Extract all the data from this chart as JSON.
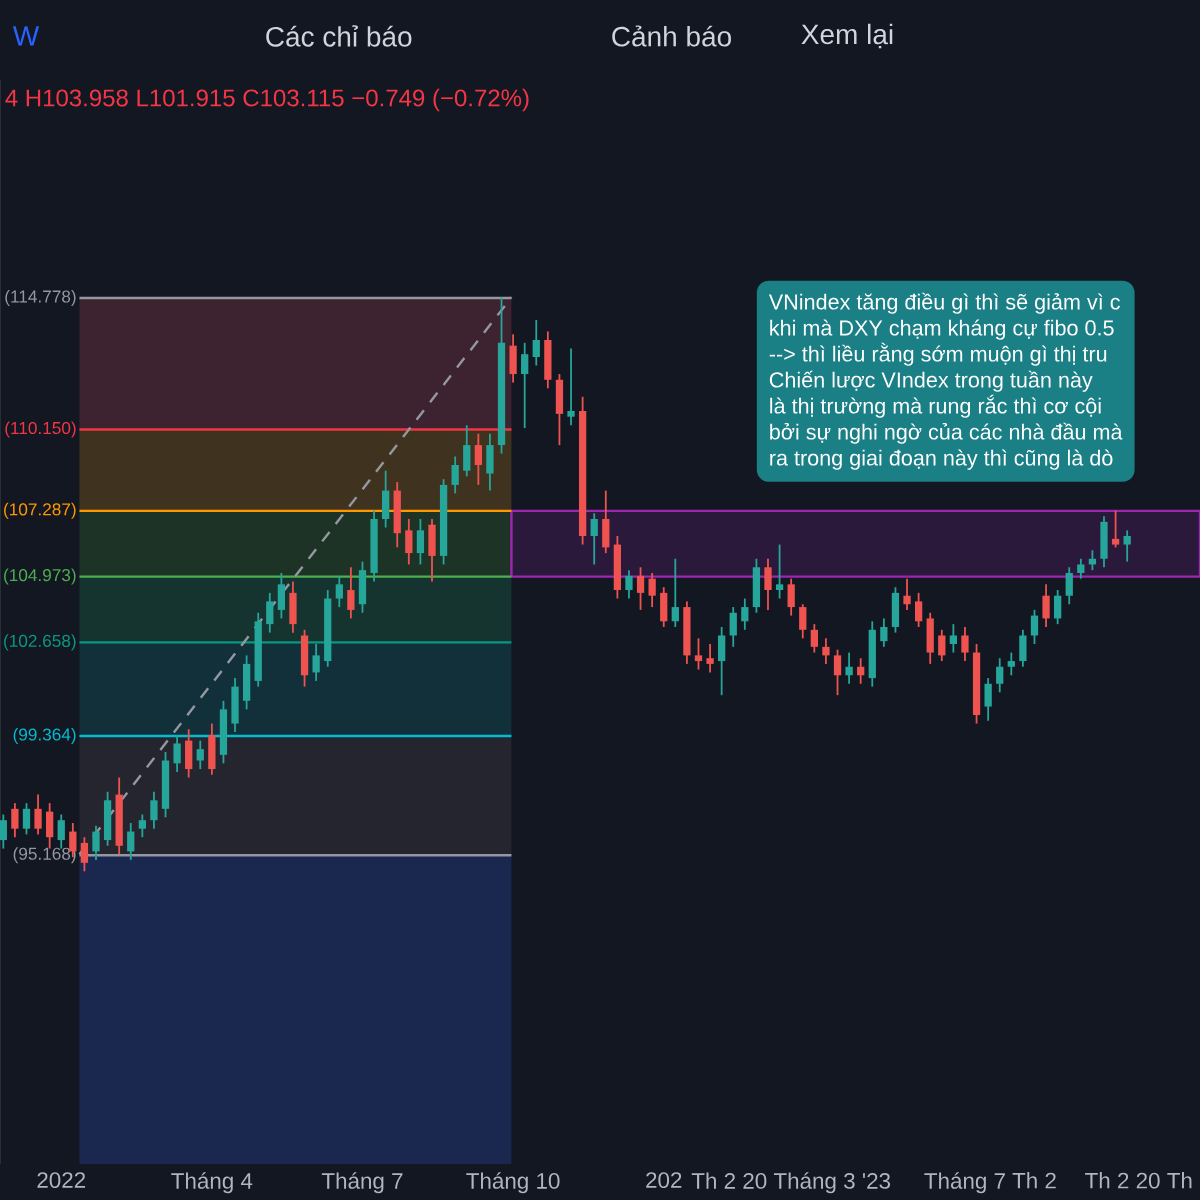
{
  "chart_data": {
    "type": "candlestick",
    "subtitle": "4 H103.958 L101.915 C103.115 −0.749 (−0.72%)",
    "annotations": [
      "W",
      "Các chỉ báo",
      "Cảnh báo",
      "Xem lại",
      "VNindex tăng điều gì thì sẽ giảm vì c",
      "khi mà DXY chạm kháng cự fibo 0.5",
      "--> thì liều rằng sớm muộn gì thị tru",
      "Chiến lược VIndex trong tuần này",
      "là thị trường mà rung rắc thì cơ cội",
      "bởi sự nghi ngờ của các nhà đầu mà",
      "ra trong giai đoạn này thì cũng là dò"
    ],
    "xlim": [
      "2021-11-27",
      "2023-11-22"
    ],
    "ylim": [
      84.3,
      122.45
    ],
    "tick_labels": "x",
    "xticks": [
      {
        "value": "2022-01-03",
        "label": "2022"
      },
      {
        "value": "2022-04-04",
        "label": "Tháng 4"
      },
      {
        "value": "2022-07-04",
        "label": "Tháng 7"
      },
      {
        "value": "2022-10-03",
        "label": "Tháng 10"
      },
      {
        "value": "2023-01-02",
        "label": "202"
      },
      {
        "value": "2023-03-20",
        "label": "Th 2 20 Tháng 3 '23"
      },
      {
        "value": "2023-07-03",
        "label": "Tháng 7"
      },
      {
        "value": "2023-08-14",
        "label": "Th 2"
      },
      {
        "value": "2023-10-16",
        "label": "Th 2 20 Th"
      }
    ],
    "ref_lines": [
      {
        "axis": "y",
        "value": 114.778,
        "label": "(114.778)",
        "color": "#9598a1"
      },
      {
        "axis": "y",
        "value": 110.15,
        "label": "(110.150)",
        "color": "#f23645"
      },
      {
        "axis": "y",
        "value": 107.287,
        "label": "(107.287)",
        "color": "#ff9800"
      },
      {
        "axis": "y",
        "value": 104.973,
        "label": "(104.973)",
        "color": "#4caf50"
      },
      {
        "axis": "y",
        "value": 102.658,
        "label": "(102.658)",
        "color": "#089981"
      },
      {
        "axis": "y",
        "value": 99.364,
        "label": "(99.364)",
        "color": "#00bcd4"
      },
      {
        "axis": "y",
        "value": 95.168,
        "label": "(95.168)",
        "color": "#9598a1"
      }
    ],
    "bands": [
      {
        "axis": "y",
        "from": 110.15,
        "to": 114.778,
        "color": "#3d2230"
      },
      {
        "axis": "y",
        "from": 107.287,
        "to": 110.15,
        "color": "#3f3320"
      },
      {
        "axis": "y",
        "from": 104.973,
        "to": 107.287,
        "color": "#1d3326"
      },
      {
        "axis": "y",
        "from": 102.658,
        "to": 104.973,
        "color": "#15332f"
      },
      {
        "axis": "y",
        "from": 99.364,
        "to": 102.658,
        "color": "#123039"
      },
      {
        "axis": "y",
        "from": 95.168,
        "to": 99.364,
        "color": "#25252f"
      },
      {
        "axis": "y",
        "from": 84.3,
        "to": 95.168,
        "color": "#1a2850"
      },
      {
        "axis": "y",
        "from": 104.973,
        "to": 107.287,
        "color": "#9c27b0"
      }
    ],
    "series": [
      {
        "type": "line",
        "x": [
          "2022-01-14",
          "2022-10-02"
        ],
        "values": [
          95.2,
          114.8
        ],
        "color": "#9598a1",
        "line_style": "dashed"
      },
      {
        "type": "candlestick",
        "x": [
          "2021-11-29",
          "2021-12-06",
          "2021-12-13",
          "2021-12-20",
          "2021-12-27",
          "2022-01-03",
          "2022-01-10",
          "2022-01-17",
          "2022-01-24",
          "2022-01-31",
          "2022-02-07",
          "2022-02-14",
          "2022-02-21",
          "2022-02-28",
          "2022-03-07",
          "2022-03-14",
          "2022-03-21",
          "2022-03-28",
          "2022-04-04",
          "2022-04-11",
          "2022-04-18",
          "2022-04-25",
          "2022-05-02",
          "2022-05-09",
          "2022-05-16",
          "2022-05-23",
          "2022-05-30",
          "2022-06-06",
          "2022-06-13",
          "2022-06-20",
          "2022-06-27",
          "2022-07-04",
          "2022-07-11",
          "2022-07-18",
          "2022-07-25",
          "2022-08-01",
          "2022-08-08",
          "2022-08-15",
          "2022-08-22",
          "2022-08-29",
          "2022-09-05",
          "2022-09-12",
          "2022-09-19",
          "2022-09-26",
          "2022-10-03",
          "2022-10-10",
          "2022-10-17",
          "2022-10-24",
          "2022-10-31",
          "2022-11-07",
          "2022-11-14",
          "2022-11-21",
          "2022-11-28",
          "2022-12-05",
          "2022-12-12",
          "2022-12-19",
          "2022-12-26",
          "2023-01-02",
          "2023-01-09",
          "2023-01-16",
          "2023-01-23",
          "2023-01-30",
          "2023-02-06",
          "2023-02-13",
          "2023-02-20",
          "2023-02-27",
          "2023-03-06",
          "2023-03-13",
          "2023-03-20",
          "2023-03-27",
          "2023-04-03",
          "2023-04-10",
          "2023-04-17",
          "2023-04-24",
          "2023-05-01",
          "2023-05-08",
          "2023-05-15",
          "2023-05-22",
          "2023-05-29",
          "2023-06-05",
          "2023-06-12",
          "2023-06-19",
          "2023-06-26",
          "2023-07-03",
          "2023-07-10",
          "2023-07-17",
          "2023-07-24",
          "2023-07-31",
          "2023-08-07",
          "2023-08-14",
          "2023-08-21",
          "2023-08-28",
          "2023-09-04",
          "2023-09-11",
          "2023-09-18",
          "2023-09-25",
          "2023-10-02",
          "2023-10-09"
        ],
        "ohlc": [
          [
            95.7,
            96.6,
            95.4,
            96.4
          ],
          [
            96.8,
            97.0,
            95.8,
            96.1
          ],
          [
            96.1,
            97.0,
            95.9,
            96.8
          ],
          [
            96.8,
            97.3,
            95.9,
            96.1
          ],
          [
            96.7,
            97.0,
            95.4,
            95.8
          ],
          [
            95.7,
            96.6,
            95.4,
            96.4
          ],
          [
            96.0,
            96.3,
            95.1,
            95.3
          ],
          [
            95.6,
            95.8,
            94.6,
            94.9
          ],
          [
            95.3,
            96.2,
            95.0,
            96.0
          ],
          [
            95.7,
            97.4,
            95.5,
            97.1
          ],
          [
            97.3,
            97.9,
            95.2,
            95.5
          ],
          [
            95.3,
            96.3,
            95.0,
            96.0
          ],
          [
            96.1,
            96.6,
            95.8,
            96.4
          ],
          [
            96.4,
            97.4,
            96.1,
            97.1
          ],
          [
            96.8,
            98.8,
            96.5,
            98.5
          ],
          [
            98.4,
            99.4,
            98.1,
            99.1
          ],
          [
            99.2,
            99.6,
            97.9,
            98.2
          ],
          [
            98.5,
            99.2,
            98.2,
            98.9
          ],
          [
            99.4,
            99.8,
            98.0,
            98.2
          ],
          [
            98.7,
            100.6,
            98.4,
            100.3
          ],
          [
            99.8,
            101.4,
            99.5,
            101.1
          ],
          [
            100.6,
            102.2,
            100.3,
            101.9
          ],
          [
            101.3,
            103.7,
            101.1,
            103.4
          ],
          [
            103.3,
            104.4,
            103.0,
            104.1
          ],
          [
            103.8,
            105.1,
            103.5,
            104.7
          ],
          [
            104.4,
            104.8,
            103.0,
            103.3
          ],
          [
            102.9,
            103.1,
            101.1,
            101.5
          ],
          [
            101.6,
            102.6,
            101.3,
            102.2
          ],
          [
            102.0,
            104.5,
            101.8,
            104.2
          ],
          [
            104.2,
            105.0,
            103.9,
            104.7
          ],
          [
            104.5,
            105.3,
            103.5,
            103.8
          ],
          [
            104.0,
            105.5,
            103.7,
            105.2
          ],
          [
            105.1,
            107.3,
            104.8,
            107.0
          ],
          [
            107.0,
            108.7,
            106.7,
            108.0
          ],
          [
            108.0,
            108.3,
            106.0,
            106.5
          ],
          [
            106.6,
            107.0,
            105.4,
            105.8
          ],
          [
            105.8,
            107.0,
            105.4,
            106.6
          ],
          [
            106.8,
            107.0,
            104.8,
            105.7
          ],
          [
            105.7,
            108.4,
            105.4,
            108.2
          ],
          [
            108.2,
            109.2,
            107.9,
            108.9
          ],
          [
            108.7,
            110.3,
            108.5,
            109.6
          ],
          [
            109.6,
            110.0,
            108.2,
            108.9
          ],
          [
            108.6,
            110.0,
            108.0,
            109.6
          ],
          [
            109.6,
            114.8,
            109.3,
            113.2
          ],
          [
            113.1,
            113.5,
            111.8,
            112.1
          ],
          [
            112.1,
            113.2,
            110.2,
            112.8
          ],
          [
            112.7,
            114.0,
            112.4,
            113.3
          ],
          [
            113.3,
            113.6,
            111.6,
            111.9
          ],
          [
            111.9,
            112.1,
            109.6,
            110.7
          ],
          [
            110.6,
            113.0,
            110.3,
            110.8
          ],
          [
            110.8,
            111.3,
            106.1,
            106.4
          ],
          [
            106.4,
            107.2,
            105.4,
            107.0
          ],
          [
            107.0,
            108.0,
            105.8,
            106.0
          ],
          [
            106.1,
            106.4,
            104.2,
            104.5
          ],
          [
            104.5,
            105.2,
            104.2,
            105.0
          ],
          [
            105.0,
            105.3,
            103.8,
            104.4
          ],
          [
            104.9,
            105.1,
            103.9,
            104.3
          ],
          [
            104.4,
            104.6,
            103.2,
            103.4
          ],
          [
            103.4,
            105.6,
            103.2,
            103.9
          ],
          [
            103.9,
            104.1,
            101.9,
            102.2
          ],
          [
            102.2,
            102.8,
            101.7,
            102.0
          ],
          [
            102.1,
            102.6,
            101.6,
            101.9
          ],
          [
            102.0,
            103.2,
            100.8,
            102.9
          ],
          [
            102.9,
            103.9,
            102.5,
            103.7
          ],
          [
            103.4,
            104.2,
            103.1,
            103.9
          ],
          [
            103.9,
            105.6,
            103.7,
            105.3
          ],
          [
            105.3,
            105.6,
            103.8,
            104.5
          ],
          [
            104.5,
            106.1,
            104.2,
            104.7
          ],
          [
            104.7,
            104.9,
            103.6,
            103.9
          ],
          [
            103.9,
            104.0,
            102.8,
            103.1
          ],
          [
            103.1,
            103.3,
            102.3,
            102.5
          ],
          [
            102.5,
            102.8,
            101.9,
            102.2
          ],
          [
            102.2,
            102.4,
            100.8,
            101.5
          ],
          [
            101.5,
            102.3,
            101.2,
            101.8
          ],
          [
            101.8,
            102.1,
            101.2,
            101.5
          ],
          [
            101.4,
            103.4,
            101.1,
            103.1
          ],
          [
            102.7,
            103.5,
            102.5,
            103.2
          ],
          [
            103.2,
            104.6,
            103.0,
            104.4
          ],
          [
            104.3,
            104.9,
            103.8,
            104.0
          ],
          [
            104.1,
            104.4,
            103.2,
            103.4
          ],
          [
            103.5,
            103.7,
            101.9,
            102.3
          ],
          [
            102.9,
            103.1,
            102.0,
            102.2
          ],
          [
            102.6,
            103.3,
            102.3,
            102.9
          ],
          [
            102.9,
            103.2,
            102.0,
            102.3
          ],
          [
            102.3,
            102.6,
            99.8,
            100.1
          ],
          [
            100.4,
            101.4,
            99.9,
            101.2
          ],
          [
            101.2,
            102.1,
            100.9,
            101.8
          ],
          [
            101.8,
            102.3,
            101.5,
            102.0
          ],
          [
            102.0,
            103.1,
            101.8,
            102.9
          ],
          [
            102.9,
            103.8,
            102.6,
            103.6
          ],
          [
            104.3,
            104.7,
            103.2,
            103.5
          ],
          [
            103.5,
            104.5,
            103.3,
            104.3
          ],
          [
            104.3,
            105.3,
            104.0,
            105.1
          ],
          [
            105.1,
            105.6,
            104.9,
            105.4
          ],
          [
            105.4,
            105.9,
            105.2,
            105.6
          ],
          [
            105.6,
            107.1,
            105.3,
            106.9
          ],
          [
            106.3,
            107.3,
            106.0,
            106.1
          ],
          [
            106.1,
            106.6,
            105.5,
            106.4
          ]
        ],
        "colors": [
          "#26a69a",
          "#ef5350",
          "#26a69a",
          "#ef5350",
          "#ef5350",
          "#26a69a",
          "#ef5350",
          "#ef5350",
          "#26a69a",
          "#26a69a",
          "#ef5350",
          "#26a69a",
          "#26a69a",
          "#26a69a",
          "#26a69a",
          "#26a69a",
          "#ef5350",
          "#26a69a",
          "#ef5350",
          "#26a69a",
          "#26a69a",
          "#26a69a",
          "#26a69a",
          "#26a69a",
          "#26a69a",
          "#ef5350",
          "#ef5350",
          "#26a69a",
          "#26a69a",
          "#26a69a",
          "#ef5350",
          "#26a69a",
          "#26a69a",
          "#26a69a",
          "#ef5350",
          "#ef5350",
          "#26a69a",
          "#ef5350",
          "#26a69a",
          "#26a69a",
          "#26a69a",
          "#ef5350",
          "#26a69a",
          "#26a69a",
          "#ef5350",
          "#26a69a",
          "#26a69a",
          "#ef5350",
          "#ef5350",
          "#26a69a",
          "#ef5350",
          "#26a69a",
          "#ef5350",
          "#ef5350",
          "#26a69a",
          "#ef5350",
          "#ef5350",
          "#ef5350",
          "#26a69a",
          "#ef5350",
          "#ef5350",
          "#ef5350",
          "#26a69a",
          "#26a69a",
          "#26a69a",
          "#26a69a",
          "#ef5350",
          "#26a69a",
          "#ef5350",
          "#ef5350",
          "#ef5350",
          "#ef5350",
          "#ef5350",
          "#26a69a",
          "#ef5350",
          "#26a69a",
          "#26a69a",
          "#26a69a",
          "#ef5350",
          "#ef5350",
          "#ef5350",
          "#ef5350",
          "#26a69a",
          "#ef5350",
          "#ef5350",
          "#26a69a",
          "#26a69a",
          "#26a69a",
          "#26a69a",
          "#26a69a",
          "#ef5350",
          "#26a69a",
          "#26a69a",
          "#26a69a",
          "#26a69a",
          "#26a69a",
          "#ef5350",
          "#26a69a"
        ]
      }
    ]
  }
}
